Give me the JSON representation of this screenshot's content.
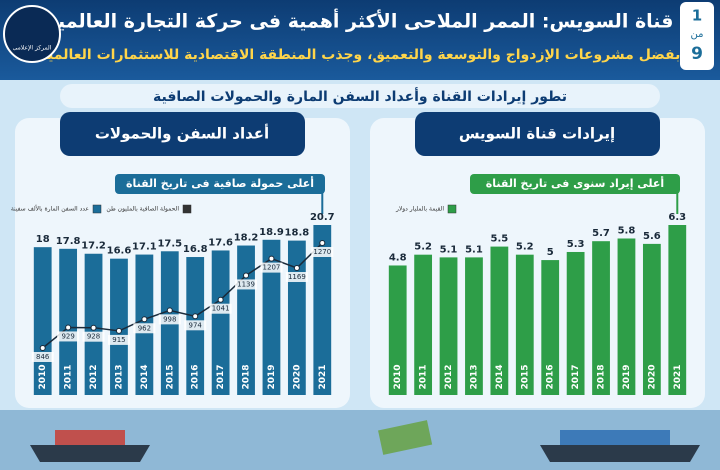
{
  "header": {
    "title": "قناة السويس: الممر الملاحى الأكثر أهمية فى حركة التجارة العالمية",
    "subtitle": "بفضل مشروعات الإزدواج والتوسعة والتعميق، وجذب المنطقة الاقتصادية للاستثمارات العالمية",
    "section": "تطور إيرادات القناة وأعداد السفن المارة والحمولات الصافية",
    "page": "1",
    "page_of": "من",
    "page_total": "9",
    "logo": "المركز الإعلامى"
  },
  "chart_data": [
    {
      "type": "bar",
      "title": "أعداد السفن والحمولات",
      "annotation": "أعلى حمولة صافية فى تاريخ القناة",
      "categories": [
        "2010",
        "2011",
        "2012",
        "2013",
        "2014",
        "2015",
        "2016",
        "2017",
        "2018",
        "2019",
        "2020",
        "2021"
      ],
      "series": [
        {
          "name": "عدد السفن المارة بالألف سفينة",
          "color": "#1b6d99",
          "values": [
            18,
            17.8,
            17.2,
            16.6,
            17.1,
            17.5,
            16.8,
            17.6,
            18.2,
            18.9,
            18.8,
            20.7
          ]
        },
        {
          "name": "الحمولة الصافية بالمليون طن",
          "type": "line",
          "color": "#ffffff",
          "values": [
            846,
            929,
            928,
            915,
            962,
            998,
            974,
            1041,
            1139,
            1207,
            1169,
            1270
          ]
        }
      ]
    },
    {
      "type": "bar",
      "title": "إيرادات قناة السويس",
      "annotation": "أعلى إيراد سنوى فى تاريخ القناة",
      "categories": [
        "2010",
        "2011",
        "2012",
        "2013",
        "2014",
        "2015",
        "2016",
        "2017",
        "2018",
        "2019",
        "2020",
        "2021"
      ],
      "series": [
        {
          "name": "القيمة بالمليار دولار",
          "color": "#2e9e48",
          "values": [
            4.8,
            5.2,
            5.1,
            5.1,
            5.5,
            5.2,
            5,
            5.3,
            5.7,
            5.8,
            5.6,
            6.3
          ]
        }
      ]
    }
  ]
}
